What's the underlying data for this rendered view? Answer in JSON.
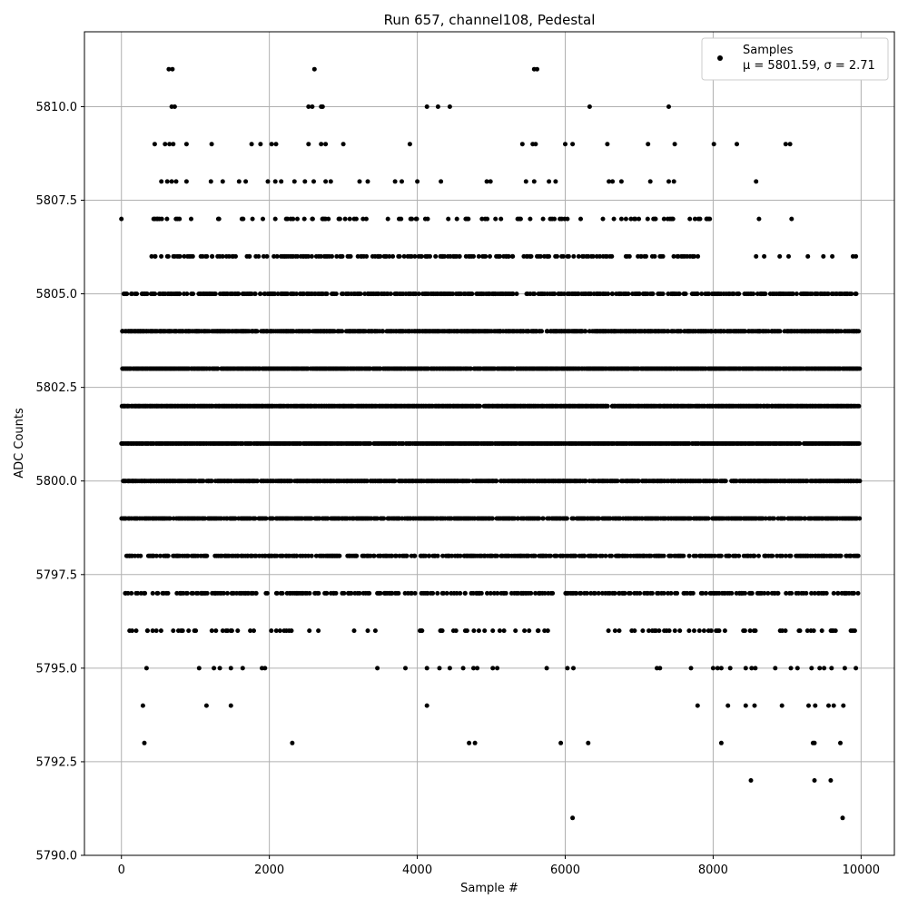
{
  "chart_data": {
    "type": "scatter",
    "title": "Run 657, channel108, Pedestal",
    "xlabel": "Sample #",
    "ylabel": "ADC Counts",
    "xlim": [
      -500,
      10450
    ],
    "ylim": [
      5790,
      5812
    ],
    "x_ticks": [
      0,
      2000,
      4000,
      6000,
      8000,
      10000
    ],
    "y_ticks": [
      5790.0,
      5792.5,
      5795.0,
      5797.5,
      5800.0,
      5802.5,
      5805.0,
      5807.5,
      5810.0
    ],
    "x_tick_labels": [
      "0",
      "2000",
      "4000",
      "6000",
      "8000",
      "10000"
    ],
    "y_tick_labels": [
      "5790.0",
      "5792.5",
      "5795.0",
      "5797.5",
      "5800.0",
      "5802.5",
      "5805.0",
      "5807.5",
      "5810.0"
    ],
    "grid": true,
    "legend_position": "top-right",
    "marker_color": "#000000",
    "series": [
      {
        "name": "Samples",
        "annotation": "μ = 5801.59, σ = 2.71",
        "points": [
          [
            0,
            5807
          ],
          [
            640,
            5811
          ],
          [
            690,
            5811
          ],
          [
            2610,
            5811
          ],
          [
            5580,
            5811
          ],
          [
            5620,
            5811
          ],
          [
            680,
            5810
          ],
          [
            720,
            5810
          ],
          [
            2530,
            5810
          ],
          [
            2580,
            5810
          ],
          [
            2700,
            5810
          ],
          [
            2720,
            5810
          ],
          [
            4130,
            5810
          ],
          [
            4280,
            5810
          ],
          [
            4440,
            5810
          ],
          [
            6330,
            5810
          ],
          [
            7400,
            5810
          ],
          [
            450,
            5809
          ],
          [
            590,
            5809
          ],
          [
            650,
            5809
          ],
          [
            700,
            5809
          ],
          [
            880,
            5809
          ],
          [
            1220,
            5809
          ],
          [
            1760,
            5809
          ],
          [
            1880,
            5809
          ],
          [
            2030,
            5809
          ],
          [
            2090,
            5809
          ],
          [
            2530,
            5809
          ],
          [
            2700,
            5809
          ],
          [
            2760,
            5809
          ],
          [
            3000,
            5809
          ],
          [
            3900,
            5809
          ],
          [
            5420,
            5809
          ],
          [
            5560,
            5809
          ],
          [
            5600,
            5809
          ],
          [
            6000,
            5809
          ],
          [
            6100,
            5809
          ],
          [
            6570,
            5809
          ],
          [
            7120,
            5809
          ],
          [
            7480,
            5809
          ],
          [
            8010,
            5809
          ],
          [
            8320,
            5809
          ],
          [
            8980,
            5809
          ],
          [
            9040,
            5809
          ],
          [
            540,
            5808
          ],
          [
            620,
            5808
          ],
          [
            680,
            5808
          ],
          [
            740,
            5808
          ],
          [
            880,
            5808
          ],
          [
            1210,
            5808
          ],
          [
            1370,
            5808
          ],
          [
            1590,
            5808
          ],
          [
            1680,
            5808
          ],
          [
            1980,
            5808
          ],
          [
            2080,
            5808
          ],
          [
            2160,
            5808
          ],
          [
            2340,
            5808
          ],
          [
            2480,
            5808
          ],
          [
            2600,
            5808
          ],
          [
            2760,
            5808
          ],
          [
            2830,
            5808
          ],
          [
            3220,
            5808
          ],
          [
            3330,
            5808
          ],
          [
            3700,
            5808
          ],
          [
            3790,
            5808
          ],
          [
            4000,
            5808
          ],
          [
            4320,
            5808
          ],
          [
            4940,
            5808
          ],
          [
            4990,
            5808
          ],
          [
            5470,
            5808
          ],
          [
            5580,
            5808
          ],
          [
            5780,
            5808
          ],
          [
            5870,
            5808
          ],
          [
            6590,
            5808
          ],
          [
            6640,
            5808
          ],
          [
            6760,
            5808
          ],
          [
            7150,
            5808
          ],
          [
            7400,
            5808
          ],
          [
            7470,
            5808
          ],
          [
            8580,
            5808
          ],
          [
            7910,
            5807
          ],
          [
            8620,
            5807
          ],
          [
            9060,
            5807
          ],
          [
            8580,
            5806
          ],
          [
            8690,
            5806
          ],
          [
            8900,
            5806
          ],
          [
            9020,
            5806
          ],
          [
            9280,
            5806
          ],
          [
            9490,
            5806
          ],
          [
            9610,
            5806
          ],
          [
            9890,
            5806
          ],
          [
            9930,
            5806
          ],
          [
            5750,
            5795
          ],
          [
            6030,
            5795
          ],
          [
            6110,
            5795
          ],
          [
            7240,
            5795
          ],
          [
            7280,
            5795
          ],
          [
            7700,
            5795
          ],
          [
            8000,
            5795
          ],
          [
            8060,
            5795
          ],
          [
            8110,
            5795
          ],
          [
            8230,
            5795
          ],
          [
            8440,
            5795
          ],
          [
            8520,
            5795
          ],
          [
            8570,
            5795
          ],
          [
            8840,
            5795
          ],
          [
            9050,
            5795
          ],
          [
            9140,
            5795
          ],
          [
            9330,
            5795
          ],
          [
            9440,
            5795
          ],
          [
            9500,
            5795
          ],
          [
            9600,
            5795
          ],
          [
            9780,
            5795
          ],
          [
            9930,
            5795
          ],
          [
            340,
            5795
          ],
          [
            1050,
            5795
          ],
          [
            1250,
            5795
          ],
          [
            1330,
            5795
          ],
          [
            1480,
            5795
          ],
          [
            1640,
            5795
          ],
          [
            1900,
            5795
          ],
          [
            1940,
            5795
          ],
          [
            3460,
            5795
          ],
          [
            3840,
            5795
          ],
          [
            4130,
            5795
          ],
          [
            4300,
            5795
          ],
          [
            4440,
            5795
          ],
          [
            4620,
            5795
          ],
          [
            4760,
            5795
          ],
          [
            4810,
            5795
          ],
          [
            5020,
            5795
          ],
          [
            5080,
            5795
          ],
          [
            290,
            5794
          ],
          [
            1150,
            5794
          ],
          [
            1480,
            5794
          ],
          [
            4130,
            5794
          ],
          [
            7790,
            5794
          ],
          [
            8200,
            5794
          ],
          [
            8440,
            5794
          ],
          [
            8560,
            5794
          ],
          [
            8930,
            5794
          ],
          [
            9290,
            5794
          ],
          [
            9380,
            5794
          ],
          [
            9560,
            5794
          ],
          [
            9630,
            5794
          ],
          [
            9760,
            5794
          ],
          [
            310,
            5793
          ],
          [
            2310,
            5793
          ],
          [
            4700,
            5793
          ],
          [
            4780,
            5793
          ],
          [
            5940,
            5793
          ],
          [
            6310,
            5793
          ],
          [
            8110,
            5793
          ],
          [
            9350,
            5793
          ],
          [
            9370,
            5793
          ],
          [
            9720,
            5793
          ],
          [
            8510,
            5792
          ],
          [
            9370,
            5792
          ],
          [
            9590,
            5792
          ],
          [
            6100,
            5791
          ],
          [
            9750,
            5791
          ]
        ],
        "dense_bands": [
          {
            "y": 5807,
            "from": 400,
            "to": 7950,
            "density": 0.18
          },
          {
            "y": 5806,
            "from": 400,
            "to": 7800,
            "density": 0.35
          },
          {
            "y": 5805,
            "from": 30,
            "to": 9950,
            "density": 0.55
          },
          {
            "y": 5804,
            "from": 0,
            "to": 9970,
            "density": 0.8
          },
          {
            "y": 5803,
            "from": 0,
            "to": 9970,
            "density": 0.92
          },
          {
            "y": 5802,
            "from": 0,
            "to": 9970,
            "density": 0.95
          },
          {
            "y": 5801,
            "from": 0,
            "to": 9970,
            "density": 0.92
          },
          {
            "y": 5800,
            "from": 0,
            "to": 9970,
            "density": 0.85
          },
          {
            "y": 5799,
            "from": 0,
            "to": 9970,
            "density": 0.75
          },
          {
            "y": 5798,
            "from": 0,
            "to": 9970,
            "density": 0.55
          },
          {
            "y": 5797,
            "from": 0,
            "to": 9970,
            "density": 0.4
          },
          {
            "y": 5796,
            "from": 100,
            "to": 9950,
            "density": 0.15
          }
        ]
      }
    ]
  }
}
